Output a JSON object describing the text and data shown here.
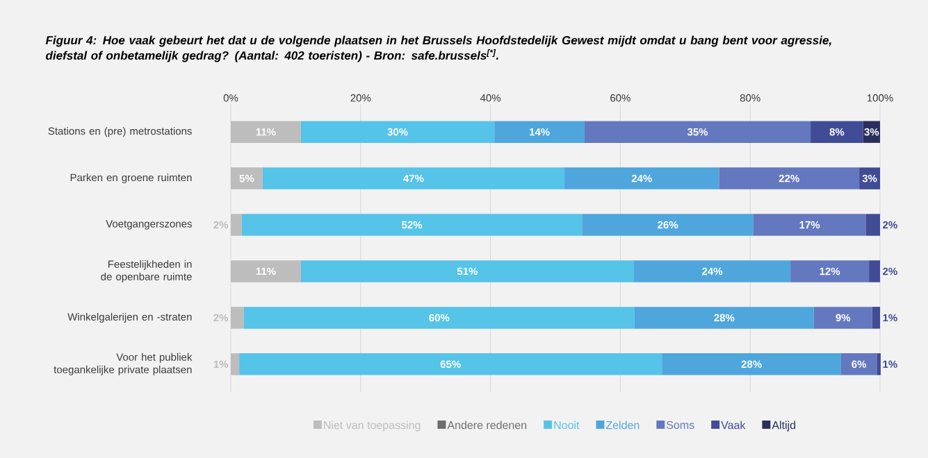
{
  "chart_data": {
    "type": "bar",
    "orientation": "horizontal",
    "stacked": true,
    "title": "Figuur 4: Hoe vaak gebeurt het dat u de volgende plaatsen in het Brussels Hoofdstedelijk Gewest mijdt omdat u bang bent voor agressie, diefstal of onbetamelijk gedrag? (Aantal: 402 toeristen) - Bron: safe.brussels$^{[*]}$.",
    "categories": [
      "Stations en (pre) metrostations",
      "Parken en groene ruimten",
      "Voetgangerszones",
      "Feestelijkheden in de openbare ruimte",
      "Winkelgalerijen en -straten",
      "Voor het publiek toegankelijke private plaatsen"
    ],
    "xlim": [
      0,
      100
    ],
    "xticks": [
      {
        "value": 0,
        "label": "0%"
      },
      {
        "value": 20,
        "label": "20%"
      },
      {
        "value": 40,
        "label": "40%"
      },
      {
        "value": 60,
        "label": "60%"
      },
      {
        "value": 80,
        "label": "80%"
      },
      {
        "value": 100,
        "label": "100%"
      }
    ],
    "grid": "x",
    "legend": "bottom",
    "series": [
      {
        "name": "Niet van toepassing",
        "color": "#bdbdbd",
        "values": [
          10.8,
          4.9,
          1.7,
          10.8,
          2.0,
          1.3
        ],
        "value_labels": [
          "11%",
          "5%",
          "2%",
          "11%",
          "2%",
          "1%"
        ]
      },
      {
        "name": "Andere redenen",
        "color": "#6d6d6d",
        "values": [
          null,
          null,
          null,
          null,
          null,
          null
        ],
        "value_labels": [
          null,
          null,
          null,
          null,
          null,
          null
        ]
      },
      {
        "name": "Nooit",
        "color": "#56c3e8",
        "values": [
          29.8,
          46.5,
          52.4,
          51.3,
          60.2,
          65.1
        ],
        "value_labels": [
          "30%",
          "47%",
          "52%",
          "51%",
          "60%",
          "65%"
        ]
      },
      {
        "name": "Zelden",
        "color": "#4fa6dd",
        "values": [
          13.9,
          23.8,
          26.4,
          24.1,
          27.6,
          27.6
        ],
        "value_labels": [
          "14%",
          "24%",
          "26%",
          "24%",
          "28%",
          "28%"
        ]
      },
      {
        "name": "Soms",
        "color": "#6478bf",
        "values": [
          34.8,
          21.6,
          17.3,
          12.1,
          9.0,
          5.5
        ],
        "value_labels": [
          "35%",
          "22%",
          "17%",
          "12%",
          "9%",
          "6%"
        ]
      },
      {
        "name": "Vaak",
        "color": "#414c96",
        "values": [
          8.1,
          3.2,
          2.2,
          1.7,
          1.2,
          0.6
        ],
        "value_labels": [
          "8%",
          "3%",
          "2%",
          "2%",
          "1%",
          "1%"
        ]
      },
      {
        "name": "Altijd",
        "color": "#2a2f5e",
        "values": [
          2.6,
          null,
          null,
          null,
          null,
          null
        ],
        "value_labels": [
          "3%",
          null,
          null,
          null,
          null,
          null
        ]
      }
    ]
  }
}
